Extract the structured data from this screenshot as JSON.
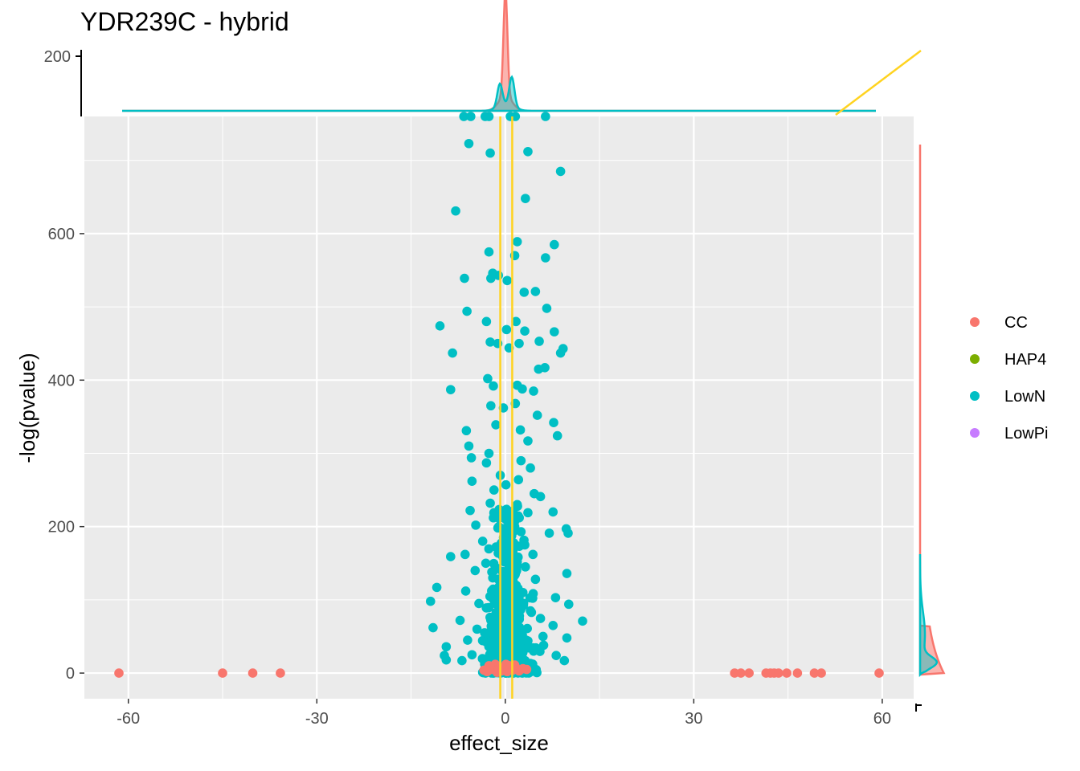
{
  "chart_data": {
    "type": "scatter",
    "title": "YDR239C - hybrid",
    "xlabel": "effect_size",
    "ylabel": "-log(pvalue)",
    "xlim": [
      -67,
      65
    ],
    "ylim": [
      -35,
      760
    ],
    "x_ticks": [
      -60,
      -30,
      0,
      30,
      60
    ],
    "y_ticks": [
      0,
      200,
      400,
      600
    ],
    "vlines": [
      -0.8,
      1.1
    ],
    "grid": true,
    "legend": {
      "placement": "right",
      "entries": [
        {
          "name": "CC",
          "color": "#F8766D"
        },
        {
          "name": "HAP4",
          "color": "#7CAE00"
        },
        {
          "name": "LowN",
          "color": "#00BFC4"
        },
        {
          "name": "LowPi",
          "color": "#C77CFF"
        }
      ]
    },
    "series": [
      {
        "name": "CC",
        "color": "#F8766D",
        "points": [
          [
            -61.5,
            0
          ],
          [
            -45,
            0
          ],
          [
            -40.2,
            0
          ],
          [
            -35.8,
            0
          ],
          [
            36.5,
            0
          ],
          [
            37.5,
            0
          ],
          [
            38.8,
            0
          ],
          [
            41.5,
            0
          ],
          [
            42.2,
            0
          ],
          [
            42.8,
            0
          ],
          [
            43.5,
            0
          ],
          [
            44.8,
            0
          ],
          [
            46.5,
            0
          ],
          [
            49.2,
            0
          ],
          [
            50.3,
            0
          ],
          [
            59.5,
            0
          ],
          [
            -2.6,
            10
          ],
          [
            -2.2,
            5
          ],
          [
            -1.6,
            12
          ],
          [
            -1.1,
            6
          ],
          [
            -0.6,
            3
          ],
          [
            -0.2,
            8
          ],
          [
            0.3,
            2
          ],
          [
            0.7,
            10
          ],
          [
            1.2,
            4
          ],
          [
            1.7,
            7
          ],
          [
            2.2,
            3
          ],
          [
            2.8,
            6
          ],
          [
            -3.4,
            4
          ],
          [
            3.4,
            5
          ],
          [
            -1.3,
            1
          ],
          [
            0.1,
            12
          ],
          [
            1.5,
            11
          ],
          [
            -2.9,
            2
          ]
        ]
      },
      {
        "name": "HAP4",
        "color": "#7CAE00",
        "points": []
      },
      {
        "name": "LowN",
        "color": "#00BFC4",
        "points": [
          [
            -6.6,
            760
          ],
          [
            -5.5,
            760
          ],
          [
            -3.2,
            760
          ],
          [
            -2.6,
            760
          ],
          [
            0.8,
            760
          ],
          [
            1.6,
            760
          ],
          [
            6.4,
            760
          ],
          [
            -5.8,
            723
          ],
          [
            -2.4,
            710
          ],
          [
            3.6,
            712
          ],
          [
            8.8,
            685
          ],
          [
            3.2,
            648
          ],
          [
            -7.9,
            631
          ],
          [
            1.9,
            589
          ],
          [
            7.8,
            585
          ],
          [
            -2.6,
            575
          ],
          [
            1.5,
            570
          ],
          [
            6.4,
            567
          ],
          [
            -2.0,
            546
          ],
          [
            -1.1,
            543
          ],
          [
            -6.5,
            539
          ],
          [
            -2.3,
            539
          ],
          [
            0.3,
            536
          ],
          [
            3.0,
            520
          ],
          [
            4.8,
            521
          ],
          [
            -6.1,
            494
          ],
          [
            6.6,
            498
          ],
          [
            1.7,
            480
          ],
          [
            -3.0,
            480
          ],
          [
            -10.4,
            474
          ],
          [
            0.2,
            469
          ],
          [
            3.1,
            467
          ],
          [
            7.8,
            466
          ],
          [
            -2.4,
            452
          ],
          [
            -1.2,
            450
          ],
          [
            2.2,
            450
          ],
          [
            5.4,
            453
          ],
          [
            9.2,
            443
          ],
          [
            -8.4,
            437
          ],
          [
            0.6,
            444
          ],
          [
            8.8,
            437
          ],
          [
            -2.8,
            402
          ],
          [
            6.3,
            417
          ],
          [
            5.3,
            415
          ],
          [
            -8.7,
            387
          ],
          [
            -1.9,
            392
          ],
          [
            1.9,
            393
          ],
          [
            2.7,
            388
          ],
          [
            4.5,
            385
          ],
          [
            -2.3,
            365
          ],
          [
            -0.3,
            362
          ],
          [
            1.6,
            368
          ],
          [
            5.1,
            352
          ],
          [
            7.7,
            342
          ],
          [
            -6.2,
            331
          ],
          [
            -1.5,
            339
          ],
          [
            2.4,
            332
          ],
          [
            8.3,
            324
          ],
          [
            -5.8,
            310
          ],
          [
            3.6,
            317
          ],
          [
            -5.4,
            294
          ],
          [
            -3.0,
            287
          ],
          [
            4.0,
            280
          ],
          [
            -5.3,
            262
          ],
          [
            0.1,
            257
          ],
          [
            2.1,
            264
          ],
          [
            4.6,
            245
          ],
          [
            5.6,
            241
          ],
          [
            -5.6,
            222
          ],
          [
            -2.4,
            232
          ],
          [
            3.6,
            219
          ],
          [
            7.6,
            220
          ],
          [
            -4.7,
            202
          ],
          [
            -1.9,
            212
          ],
          [
            -0.2,
            188
          ],
          [
            2.5,
            193
          ],
          [
            7.0,
            191
          ],
          [
            10.0,
            191
          ],
          [
            9.7,
            197
          ],
          [
            -8.7,
            159
          ],
          [
            -6.4,
            162
          ],
          [
            0.6,
            167
          ],
          [
            4.4,
            162
          ],
          [
            9.8,
            136
          ],
          [
            -10.9,
            117
          ],
          [
            -11.9,
            98
          ],
          [
            -6.3,
            112
          ],
          [
            2.8,
            110
          ],
          [
            8.0,
            103
          ],
          [
            10.1,
            94
          ],
          [
            -11.5,
            62
          ],
          [
            -7.2,
            72
          ],
          [
            12.3,
            71
          ],
          [
            9.8,
            48
          ],
          [
            -9.4,
            36
          ],
          [
            -9.7,
            24
          ],
          [
            -6.9,
            17
          ],
          [
            8.1,
            24
          ],
          [
            9.4,
            17
          ],
          [
            -9.4,
            18
          ],
          [
            -5.3,
            25
          ],
          [
            6.1,
            38
          ],
          [
            7.6,
            65
          ],
          [
            -4.8,
            140
          ],
          [
            4.8,
            128
          ],
          [
            -3.6,
            180
          ],
          [
            3.1,
            175
          ],
          [
            -4.2,
            95
          ],
          [
            4.0,
            85
          ],
          [
            -3.3,
            55
          ],
          [
            3.3,
            45
          ],
          [
            -2.0,
            130
          ],
          [
            1.8,
            140
          ],
          [
            -1.5,
            100
          ],
          [
            1.4,
            90
          ],
          [
            -4.5,
            60
          ],
          [
            4.5,
            30
          ],
          [
            -6.0,
            45
          ],
          [
            6.0,
            50
          ],
          [
            -2.6,
            300
          ],
          [
            2.5,
            290
          ],
          [
            -1.8,
            250
          ],
          [
            1.9,
            230
          ],
          [
            -0.8,
            270
          ],
          [
            0.9,
            200
          ],
          [
            -3.1,
            150
          ],
          [
            3.2,
            145
          ]
        ],
        "density_clusters": [
          {
            "x_center": 0.3,
            "x_spread": 2.7,
            "y_max": 230,
            "count": 380
          },
          {
            "x_center": 0.4,
            "x_spread": 4.4,
            "y_max": 110,
            "count": 320
          }
        ]
      },
      {
        "name": "LowPi",
        "color": "#C77CFF",
        "points": []
      }
    ],
    "top_margin_axis": {
      "ticks": [
        200
      ]
    }
  }
}
